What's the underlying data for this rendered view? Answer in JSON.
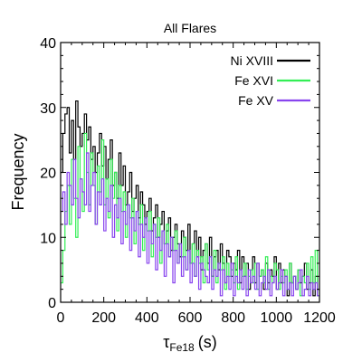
{
  "chart_data": {
    "type": "line",
    "subtype": "histogram-step",
    "title": "All Flares",
    "xlabel": "τ",
    "xlabel_sub": "Fe18",
    "xlabel_unit": "(s)",
    "ylabel": "Frequency",
    "xlim": [
      0,
      1200
    ],
    "ylim": [
      0,
      40
    ],
    "xticks": [
      0,
      200,
      400,
      600,
      800,
      1000,
      1200
    ],
    "yticks": [
      0,
      10,
      20,
      30,
      40
    ],
    "legend_position": "top-right",
    "bin_width": 10,
    "series": [
      {
        "name": "Ni XVIII",
        "color": "#000000",
        "x_start": 0,
        "values": [
          20,
          26,
          29,
          30,
          23,
          28,
          22,
          31,
          27,
          24,
          26,
          29,
          25,
          27,
          22,
          24,
          20,
          23,
          26,
          21,
          24,
          19,
          22,
          25,
          18,
          20,
          16,
          23,
          18,
          21,
          15,
          17,
          20,
          14,
          16,
          18,
          13,
          17,
          15,
          12,
          14,
          16,
          11,
          13,
          15,
          10,
          12,
          14,
          9,
          11,
          13,
          8,
          10,
          12,
          9,
          7,
          11,
          10,
          8,
          12,
          6,
          9,
          11,
          7,
          10,
          5,
          8,
          9,
          6,
          10,
          4,
          7,
          8,
          5,
          9,
          6,
          3,
          8,
          7,
          4,
          6,
          5,
          8,
          3,
          7,
          4,
          6,
          2,
          5,
          7,
          3,
          6,
          4,
          5,
          2,
          6,
          3,
          5,
          4,
          7,
          2,
          6,
          3,
          5,
          4,
          1,
          6,
          3,
          4,
          2,
          5,
          3,
          4,
          6,
          2,
          3,
          5,
          1,
          4,
          2
        ]
      },
      {
        "name": "Fe XVI",
        "color": "#33ee55",
        "x_start": 0,
        "values": [
          3,
          8,
          14,
          18,
          12,
          22,
          16,
          10,
          24,
          19,
          14,
          26,
          20,
          15,
          23,
          18,
          12,
          21,
          17,
          25,
          15,
          19,
          13,
          22,
          16,
          20,
          11,
          18,
          14,
          17,
          10,
          15,
          13,
          16,
          9,
          14,
          12,
          15,
          8,
          13,
          11,
          14,
          7,
          12,
          10,
          13,
          6,
          11,
          9,
          12,
          7,
          10,
          8,
          11,
          6,
          9,
          7,
          10,
          5,
          8,
          6,
          9,
          4,
          8,
          6,
          7,
          3,
          9,
          5,
          7,
          4,
          8,
          3,
          6,
          5,
          7,
          2,
          6,
          4,
          5,
          3,
          7,
          2,
          5,
          4,
          6,
          2,
          4,
          5,
          3,
          6,
          2,
          4,
          5,
          3,
          7,
          2,
          4,
          3,
          6,
          5,
          2,
          4,
          3,
          5,
          2,
          6,
          3,
          4,
          2,
          5,
          1,
          4,
          3,
          6,
          2,
          7,
          3,
          8,
          1
        ]
      },
      {
        "name": "Fe XV",
        "color": "#8844ee",
        "x_start": 0,
        "values": [
          14,
          17,
          12,
          20,
          18,
          15,
          22,
          16,
          13,
          19,
          17,
          15,
          23,
          14,
          18,
          20,
          12,
          17,
          15,
          19,
          11,
          16,
          14,
          18,
          10,
          15,
          13,
          16,
          9,
          14,
          12,
          15,
          8,
          13,
          11,
          14,
          7,
          12,
          10,
          13,
          6,
          11,
          9,
          12,
          5,
          10,
          8,
          11,
          4,
          9,
          7,
          10,
          3,
          8,
          6,
          9,
          4,
          7,
          5,
          8,
          3,
          6,
          4,
          7,
          2,
          6,
          5,
          4,
          3,
          7,
          2,
          5,
          4,
          6,
          1,
          5,
          3,
          4,
          2,
          6,
          1,
          4,
          3,
          5,
          2,
          4,
          1,
          5,
          3,
          4,
          2,
          6,
          1,
          3,
          4,
          2,
          5,
          1,
          3,
          4,
          2,
          3,
          5,
          1,
          4,
          2,
          3,
          1,
          4,
          2,
          3,
          5,
          1,
          2,
          4,
          1,
          3,
          2,
          3,
          1
        ]
      }
    ]
  }
}
